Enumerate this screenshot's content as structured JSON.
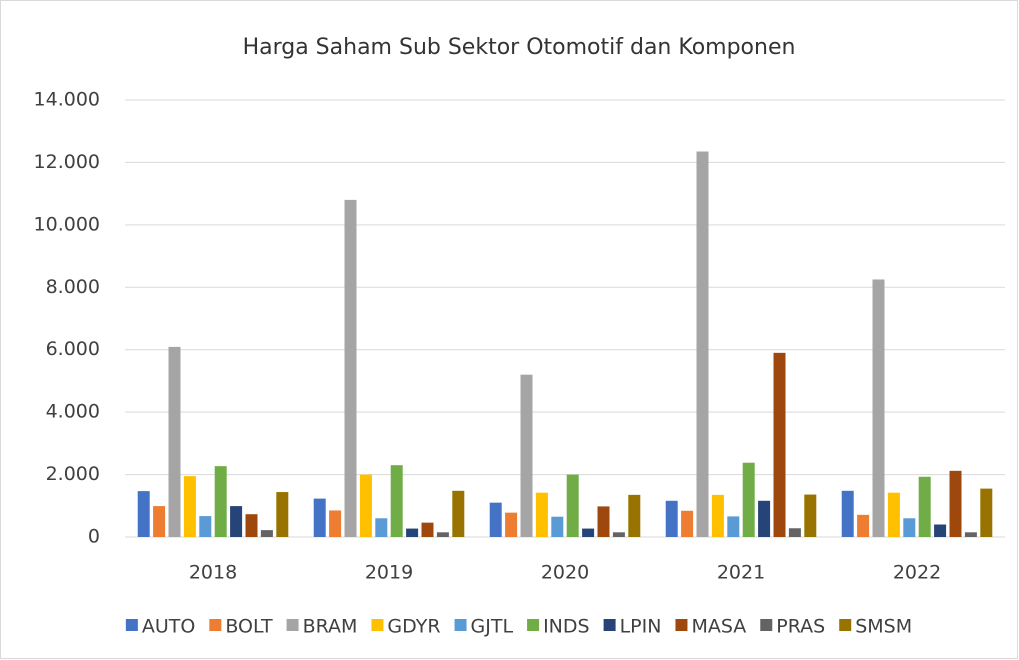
{
  "chart_data": {
    "type": "bar",
    "title": "Harga Saham Sub Sektor Otomotif dan Komponen",
    "categories": [
      "2018",
      "2019",
      "2020",
      "2021",
      "2022"
    ],
    "series": [
      {
        "name": "AUTO",
        "color": "#4472c4",
        "values": [
          1470,
          1230,
          1100,
          1160,
          1480
        ]
      },
      {
        "name": "BOLT",
        "color": "#ed7d31",
        "values": [
          990,
          850,
          780,
          840,
          710
        ]
      },
      {
        "name": "BRAM",
        "color": "#a5a5a5",
        "values": [
          6090,
          10800,
          5200,
          12350,
          8250
        ]
      },
      {
        "name": "GDYR",
        "color": "#ffc000",
        "values": [
          1950,
          2000,
          1420,
          1350,
          1420
        ]
      },
      {
        "name": "GJTL",
        "color": "#5b9bd5",
        "values": [
          670,
          600,
          650,
          660,
          600
        ]
      },
      {
        "name": "INDS",
        "color": "#70ad47",
        "values": [
          2270,
          2300,
          2000,
          2380,
          1930
        ]
      },
      {
        "name": "LPIN",
        "color": "#264478",
        "values": [
          990,
          270,
          270,
          1160,
          400
        ]
      },
      {
        "name": "MASA",
        "color": "#9e480e",
        "values": [
          730,
          460,
          980,
          5900,
          2120
        ]
      },
      {
        "name": "PRAS",
        "color": "#636363",
        "values": [
          220,
          150,
          150,
          280,
          150
        ]
      },
      {
        "name": "SMSM",
        "color": "#997300",
        "values": [
          1440,
          1480,
          1350,
          1360,
          1550
        ]
      }
    ],
    "ylim": [
      0,
      14000
    ],
    "yticks": [
      0,
      {
        "value": 2000,
        "label": "2.000"
      },
      {
        "value": 4000,
        "label": "4.000"
      },
      {
        "value": 6000,
        "label": "6.000"
      },
      {
        "value": 8000,
        "label": "8.000"
      },
      {
        "value": 10000,
        "label": "10.000"
      },
      {
        "value": 12000,
        "label": "12.000"
      },
      {
        "value": 14000,
        "label": "14.000"
      }
    ],
    "grid": true,
    "legend": "bottom"
  }
}
